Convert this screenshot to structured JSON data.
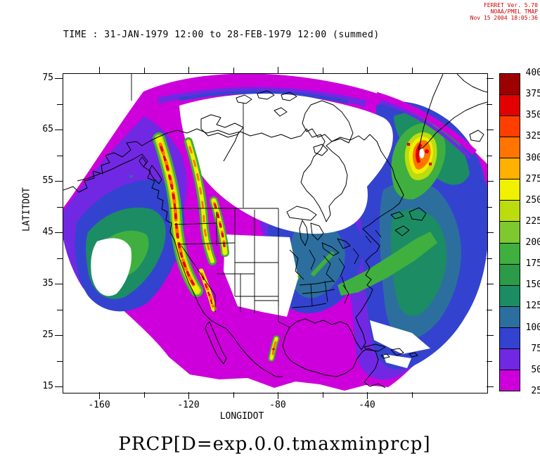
{
  "stamp": {
    "lines": [
      "FERRET Ver. 5.70",
      "NOAA/PMEL TMAP",
      "Nov 15 2004 18:05:36"
    ],
    "color": "#cc0000"
  },
  "header": {
    "title": "TIME : 31-JAN-1979 12:00 to 28-FEB-1979 12:00 (summed)"
  },
  "footer": {
    "label": "PRCP[D=exp.0.0.tmaxminprcp]"
  },
  "axes": {
    "y": {
      "label": "LATITDOT",
      "major_ticks": [
        75,
        65,
        55,
        45,
        35,
        25,
        15
      ]
    },
    "x": {
      "label": "LONGIDOT",
      "major_ticks": [
        -160,
        -120,
        -80,
        -40
      ]
    }
  },
  "colorbar": {
    "min": 25,
    "max": 400,
    "step": 25,
    "levels": [
      25,
      50,
      75,
      100,
      125,
      150,
      175,
      200,
      225,
      250,
      275,
      300,
      325,
      350,
      375,
      400
    ],
    "colors_low_to_high": [
      "#CD00DB",
      "#7128E3",
      "#3343CF",
      "#2C6F9F",
      "#1C8C64",
      "#2B9B47",
      "#3FAF3F",
      "#7FC930",
      "#BCDC10",
      "#F0F000",
      "#FFB000",
      "#FF7500",
      "#FF3E00",
      "#E30000",
      "#9C0000"
    ]
  },
  "chart_data": {
    "type": "heatmap",
    "title": "TIME : 31-JAN-1979 12:00 to 28-FEB-1979 12:00 (summed)",
    "variable": "PRCP[D=exp.0.0.tmaxminprcp]",
    "xlabel": "LONGIDOT",
    "ylabel": "LATITDOT",
    "xlim": [
      -176,
      14
    ],
    "ylim": [
      14,
      76
    ],
    "x_ticks": [
      -160,
      -120,
      -80,
      -40
    ],
    "y_ticks": [
      75,
      65,
      55,
      45,
      35,
      25,
      15
    ],
    "colorbar_levels": [
      25,
      50,
      75,
      100,
      125,
      150,
      175,
      200,
      225,
      250,
      275,
      300,
      325,
      350,
      375,
      400
    ],
    "colorbar_colors_low_to_high": [
      "#CD00DB",
      "#7128E3",
      "#3343CF",
      "#2C6F9F",
      "#1C8C64",
      "#2B9B47",
      "#3FAF3F",
      "#7FC930",
      "#BCDC10",
      "#F0F000",
      "#FFB000",
      "#FF7500",
      "#FF3E00",
      "#E30000",
      "#9C0000"
    ],
    "legend_position": "right",
    "projection": "curved fan-shaped regional grid over North America",
    "notable_features": [
      "summed monthly precipitation field over North America on a fan-shaped (Lambert-like) grid",
      "low values (25-75, magenta/violet) over most of interior Canada, Mexico and the Gulf of Alaska",
      "moderate values (75-150, blue) over the eastern US, Great Lakes and western North Atlantic",
      "high bands (150-250, green) offshore the Pacific coast, along the Atlantic storm track and near Labrador",
      "maxima exceeding 350-400 (red/dark red) along the British Columbia / Pacific Northwest coastal ranges and Sierra Nevada",
      "isolated maximum near the southern tip of Greenland",
      "small high-precipitation streak over the Sierra Madre in Mexico",
      "white areas inside the fan (central US plains, central/arctic Canada) below the 25 contour"
    ]
  }
}
